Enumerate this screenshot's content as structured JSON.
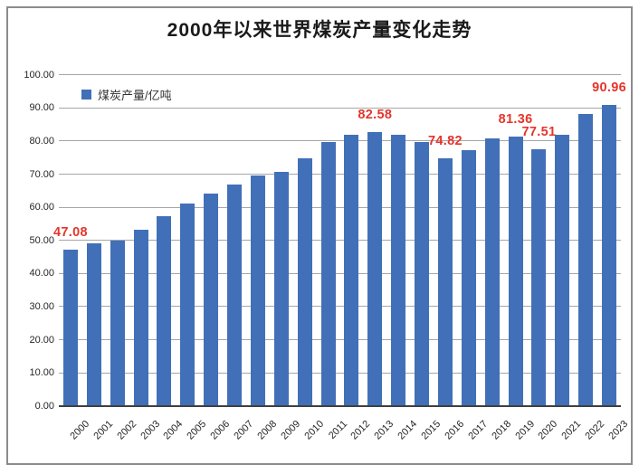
{
  "title": "2000年以来世界煤炭产量变化走势",
  "legend": {
    "label": "煤炭产量/亿吨"
  },
  "colors": {
    "bar": "#4170B8",
    "annotation": "#E5352B",
    "gridline": "#A6A6A6",
    "axis_line": "#3F3F3F",
    "text": "#262626",
    "frame_border": "#8C8C8C"
  },
  "chart_data": {
    "type": "bar",
    "title": "2000年以来世界煤炭产量变化走势",
    "series_name": "煤炭产量/亿吨",
    "categories": [
      "2000",
      "2001",
      "2002",
      "2003",
      "2004",
      "2005",
      "2006",
      "2007",
      "2008",
      "2009",
      "2010",
      "2011",
      "2012",
      "2013",
      "2014",
      "2015",
      "2016",
      "2017",
      "2018",
      "2019",
      "2020",
      "2021",
      "2022",
      "2023"
    ],
    "values": [
      47.08,
      49.0,
      49.9,
      53.2,
      57.4,
      61.0,
      64.2,
      66.8,
      69.5,
      70.7,
      74.7,
      79.7,
      82.0,
      82.58,
      82.0,
      79.8,
      74.82,
      77.3,
      80.9,
      81.36,
      77.51,
      82.0,
      88.3,
      90.96
    ],
    "xlabel": "",
    "ylabel": "",
    "ylim": [
      0,
      100
    ],
    "ytick_step": 10,
    "ytick_labels": [
      "0.00",
      "10.00",
      "20.00",
      "30.00",
      "40.00",
      "50.00",
      "60.00",
      "70.00",
      "80.00",
      "90.00",
      "100.00"
    ],
    "grid": true,
    "legend_position": "top-left-inside",
    "annotations": [
      {
        "category": "2000",
        "text": "47.08"
      },
      {
        "category": "2013",
        "text": "82.58"
      },
      {
        "category": "2016",
        "text": "74.82"
      },
      {
        "category": "2019",
        "text": "81.36"
      },
      {
        "category": "2020",
        "text": "77.51"
      },
      {
        "category": "2023",
        "text": "90.96"
      }
    ]
  }
}
